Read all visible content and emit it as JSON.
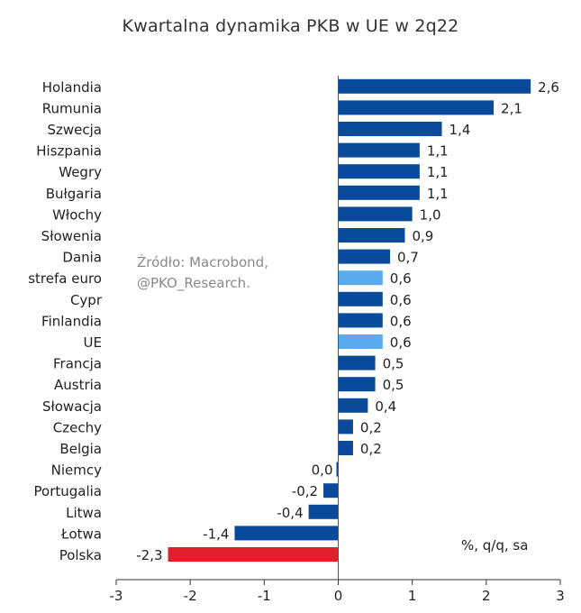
{
  "chart_data": {
    "type": "bar",
    "orientation": "horizontal",
    "title": "Kwartalna dynamika PKB w UE w 2q22",
    "source_note": [
      "Źródło: Macrobond,",
      "@PKO_Research."
    ],
    "unit_note": "%, q/q, sa",
    "categories": [
      "Holandia",
      "Rumunia",
      "Szwecja",
      "Hiszpania",
      "Wegry",
      "Bułgaria",
      "Włochy",
      "Słowenia",
      "Dania",
      "strefa euro",
      "Cypr",
      "Finlandia",
      "UE",
      "Francja",
      "Austria",
      "Słowacja",
      "Czechy",
      "Belgia",
      "Niemcy",
      "Portugalia",
      "Litwa",
      "Łotwa",
      "Polska"
    ],
    "values": [
      2.6,
      2.1,
      1.4,
      1.1,
      1.1,
      1.1,
      1.0,
      0.9,
      0.7,
      0.6,
      0.6,
      0.6,
      0.6,
      0.5,
      0.5,
      0.4,
      0.2,
      0.2,
      0.0,
      -0.2,
      -0.4,
      -1.4,
      -2.3
    ],
    "value_labels": [
      "2,6",
      "2,1",
      "1,4",
      "1,1",
      "1,1",
      "1,1",
      "1,0",
      "0,9",
      "0,7",
      "0,6",
      "0,6",
      "0,6",
      "0,6",
      "0,5",
      "0,5",
      "0,4",
      "0,2",
      "0,2",
      "0,0",
      "-0,2",
      "-0,4",
      "-1,4",
      "-2,3"
    ],
    "xlim": [
      -3,
      3
    ],
    "xticks": [
      -3,
      -2,
      -1,
      0,
      1,
      2,
      3
    ],
    "xtick_labels": [
      "-3",
      "-2",
      "-1",
      "0",
      "1",
      "2",
      "3"
    ],
    "highlight": {
      "strefa euro": "#5aaaf0",
      "UE": "#5aaaf0",
      "Polska": "#e0202a"
    },
    "colors": {
      "default": "#0a4a9a",
      "aggregate": "#5aaaf0",
      "poland": "#e0202a"
    },
    "grid": false
  }
}
